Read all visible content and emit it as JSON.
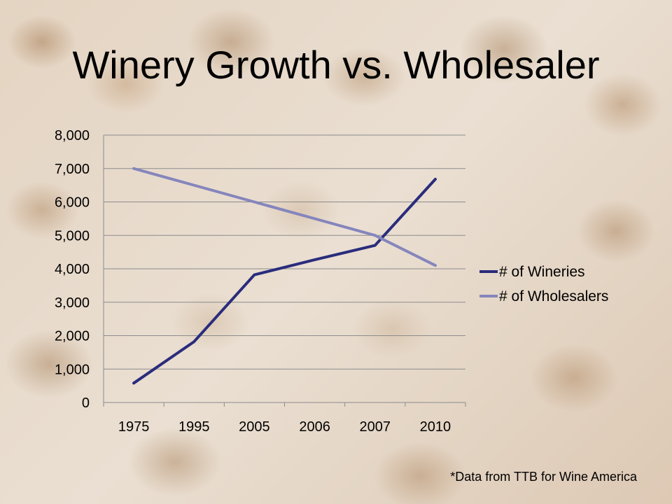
{
  "slide": {
    "title": "Winery Growth vs. Wholesaler",
    "source_note": "*Data from TTB for Wine America"
  },
  "chart_data": {
    "type": "line",
    "categories": [
      "1975",
      "1995",
      "2005",
      "2006",
      "2007",
      "2010"
    ],
    "series": [
      {
        "name": "# of Wineries",
        "values": [
          580,
          1820,
          3820,
          4270,
          4700,
          6680
        ],
        "color": "#2a2c7c"
      },
      {
        "name": "# of Wholesalers",
        "values": [
          7000,
          6500,
          6000,
          5500,
          5000,
          4100
        ],
        "color": "#8585bd"
      }
    ],
    "ylim": [
      0,
      8000
    ],
    "yticks": [
      0,
      1000,
      2000,
      3000,
      4000,
      5000,
      6000,
      7000,
      8000
    ],
    "ytick_labels": [
      "0",
      "1,000",
      "2,000",
      "3,000",
      "4,000",
      "5,000",
      "6,000",
      "7,000",
      "8,000"
    ],
    "grid": true,
    "legend_position": "right",
    "title": "",
    "xlabel": "",
    "ylabel": ""
  }
}
